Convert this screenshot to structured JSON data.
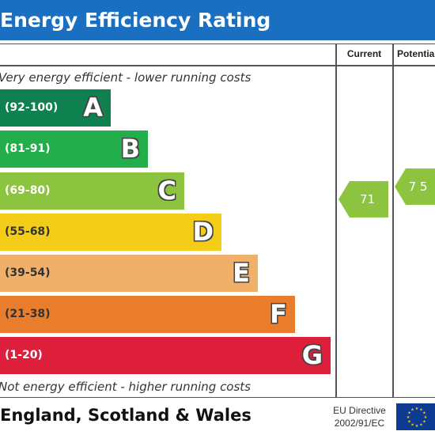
{
  "title": "Energy Efficiency Rating",
  "columns": {
    "current": "Current",
    "potential": "Potential"
  },
  "notes": {
    "top": "Very energy efficient - lower running costs",
    "bottom": "Not energy efficient - higher running costs"
  },
  "bands": [
    {
      "letter": "A",
      "range": "(92-100)",
      "color": "#0f8050"
    },
    {
      "letter": "B",
      "range": "(81-91)",
      "color": "#22ae4b"
    },
    {
      "letter": "C",
      "range": "(69-80)",
      "color": "#8cc43f"
    },
    {
      "letter": "D",
      "range": "(55-68)",
      "color": "#f3cd17"
    },
    {
      "letter": "E",
      "range": "(39-54)",
      "color": "#f0b06a"
    },
    {
      "letter": "F",
      "range": "(21-38)",
      "color": "#ea7d2b"
    },
    {
      "letter": "G",
      "range": "(1-20)",
      "color": "#dd1f3b"
    }
  ],
  "ratings": {
    "current": {
      "value": "71",
      "band": "C",
      "color": "#8cc43f"
    },
    "potential": {
      "value": "75",
      "band": "C",
      "color": "#8cc43f"
    }
  },
  "footer": {
    "country": "England, Scotland & Wales",
    "directive_line1": "EU Directive",
    "directive_line2": "2002/91/EC"
  },
  "colors": {
    "header": "#1b6fc0",
    "eu_flag": "#0d3b94",
    "eu_stars": "#f5d000"
  }
}
